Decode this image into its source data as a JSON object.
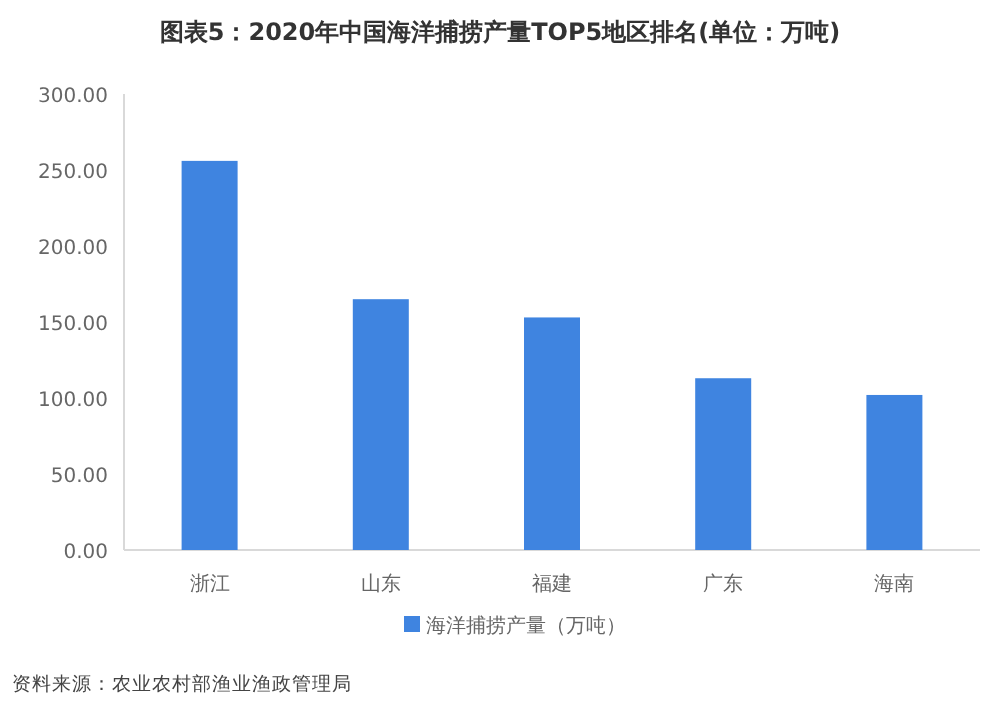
{
  "chart_data": {
    "type": "bar",
    "title": "图表5：2020年中国海洋捕捞产量TOP5地区排名(单位：万吨)",
    "categories": [
      "浙江",
      "山东",
      "福建",
      "广东",
      "海南"
    ],
    "series": [
      {
        "name": "海洋捕捞产量（万吨）",
        "color": "#3f84e0",
        "values": [
          256,
          165,
          153,
          113,
          102
        ]
      }
    ],
    "ylim": [
      0,
      300
    ],
    "yticks": [
      {
        "value": 0,
        "label": "0.00"
      },
      {
        "value": 50,
        "label": "50.00"
      },
      {
        "value": 100,
        "label": "100.00"
      },
      {
        "value": 150,
        "label": "150.00"
      },
      {
        "value": 200,
        "label": "200.00"
      },
      {
        "value": 250,
        "label": "250.00"
      },
      {
        "value": 300,
        "label": "300.00"
      }
    ],
    "legend": "bottom",
    "annotations": [
      "资料来源：农业农村部渔业渔政管理局"
    ]
  }
}
